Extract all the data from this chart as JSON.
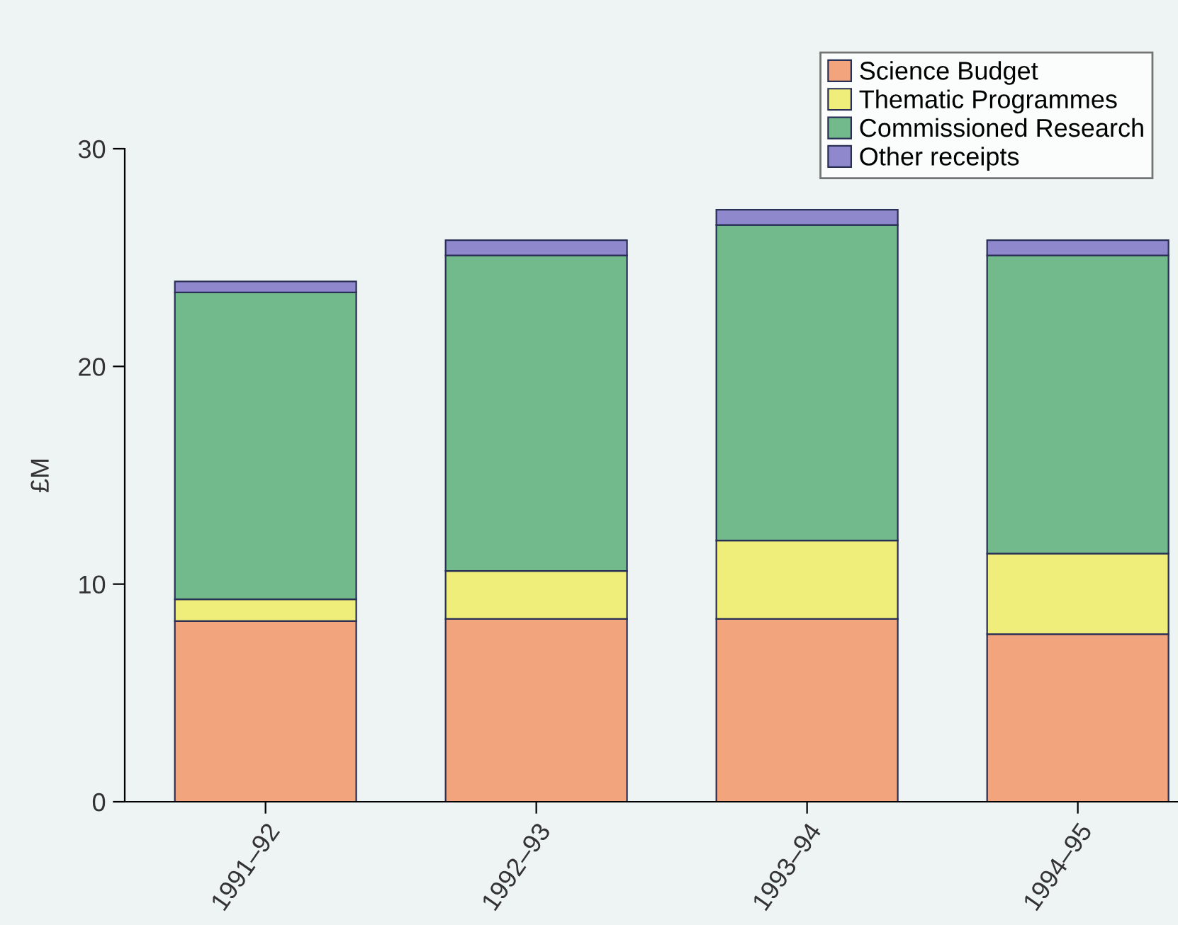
{
  "chart_data": {
    "type": "bar",
    "stacked": true,
    "ylabel": "£M",
    "categories": [
      "1991–92",
      "1992–93",
      "1993–94",
      "1994–95"
    ],
    "series": [
      {
        "name": "Science Budget",
        "color": "#f2a47c",
        "values": [
          8.3,
          8.4,
          8.4,
          7.7
        ]
      },
      {
        "name": "Thematic Programmes",
        "color": "#f0ee7a",
        "values": [
          1.0,
          2.2,
          3.6,
          3.7
        ]
      },
      {
        "name": "Commissioned Research",
        "color": "#72b98c",
        "values": [
          14.1,
          14.5,
          14.5,
          13.7
        ]
      },
      {
        "name": "Other receipts",
        "color": "#8f88cc",
        "values": [
          0.5,
          0.7,
          0.7,
          0.7
        ]
      }
    ],
    "ylim": [
      0,
      30
    ],
    "yticks": [
      0,
      10,
      20,
      30
    ],
    "grid": false,
    "legend": "top right"
  }
}
